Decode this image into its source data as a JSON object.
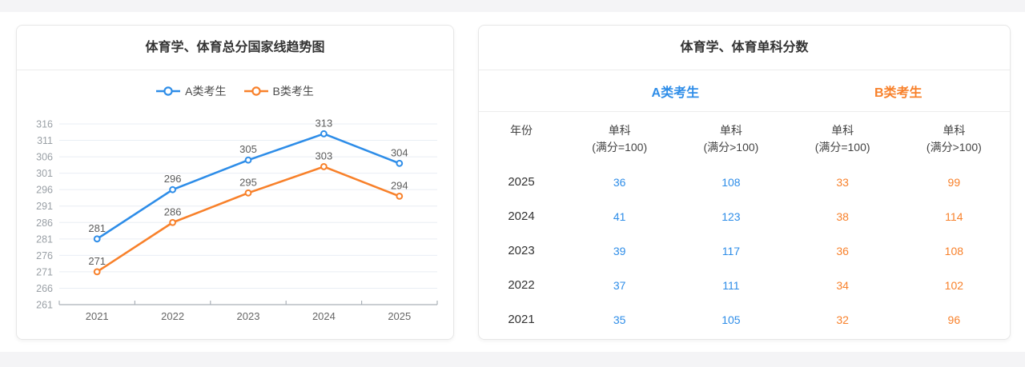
{
  "page": {
    "strip_color": "#f4f4f6",
    "background": "#ffffff"
  },
  "colors": {
    "blue": "#2e8de8",
    "orange": "#f8812b",
    "grid_line": "#e9eef4",
    "axis_line": "#aab0b8",
    "tick_label": "#9aa0a6",
    "x_label": "#666666",
    "data_label": "#5c5c5c",
    "title_text": "#333333"
  },
  "chart_data": {
    "type": "line",
    "title": "体育学、体育总分国家线趋势图",
    "categories": [
      "2021",
      "2022",
      "2023",
      "2024",
      "2025"
    ],
    "series": [
      {
        "name": "A类考生",
        "color_key": "blue",
        "values": [
          281,
          296,
          305,
          313,
          304
        ]
      },
      {
        "name": "B类考生",
        "color_key": "orange",
        "values": [
          271,
          286,
          295,
          303,
          294
        ]
      }
    ],
    "ylim": [
      261,
      316
    ],
    "ytick_step": 5,
    "grid": true,
    "legend_position": "top",
    "data_labels": true,
    "xlabel": "",
    "ylabel": ""
  },
  "score_table": {
    "title": "体育学、体育单科分数",
    "groups": [
      {
        "label": "A类考生",
        "color_key": "blue"
      },
      {
        "label": "B类考生",
        "color_key": "orange"
      }
    ],
    "columns": [
      {
        "line1": "年份",
        "line2": "",
        "color_key": ""
      },
      {
        "line1": "单科",
        "line2": "(满分=100)",
        "color_key": "blue"
      },
      {
        "line1": "单科",
        "line2": "(满分>100)",
        "color_key": "blue"
      },
      {
        "line1": "单科",
        "line2": "(满分=100)",
        "color_key": "orange"
      },
      {
        "line1": "单科",
        "line2": "(满分>100)",
        "color_key": "orange"
      }
    ],
    "rows": [
      {
        "year": "2025",
        "values": [
          "36",
          "108",
          "33",
          "99"
        ]
      },
      {
        "year": "2024",
        "values": [
          "41",
          "123",
          "38",
          "114"
        ]
      },
      {
        "year": "2023",
        "values": [
          "39",
          "117",
          "36",
          "108"
        ]
      },
      {
        "year": "2022",
        "values": [
          "37",
          "111",
          "34",
          "102"
        ]
      },
      {
        "year": "2021",
        "values": [
          "35",
          "105",
          "32",
          "96"
        ]
      }
    ]
  }
}
